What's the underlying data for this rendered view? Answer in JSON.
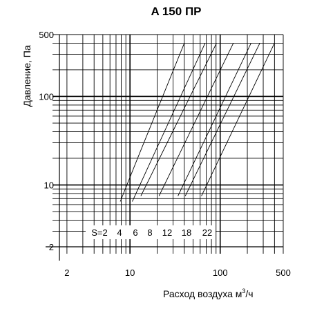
{
  "chart_data": {
    "type": "line",
    "title": "A 150 ПР",
    "xlabel_main": "Расход воздуха м",
    "xlabel_sup": "3",
    "xlabel_tail": "/ч",
    "ylabel": "Давление, Па",
    "x_scale": "log",
    "y_scale": "log",
    "xlim": [
      1.65,
      500
    ],
    "ylim": [
      2,
      500
    ],
    "x_ticks": [
      {
        "value": 2,
        "label": "2"
      },
      {
        "value": 10,
        "label": "10"
      },
      {
        "value": 100,
        "label": "100"
      },
      {
        "value": 500,
        "label": "500"
      }
    ],
    "y_ticks": [
      {
        "value": 2,
        "label": "2"
      },
      {
        "value": 10,
        "label": "10"
      },
      {
        "value": 100,
        "label": "100"
      },
      {
        "value": 500,
        "label": "500"
      }
    ],
    "grid": true,
    "legend": "none",
    "series_note": "S-labels along bottom row",
    "series": [
      {
        "label": "S=2",
        "points": [
          [
            7.8,
            6.5
          ],
          [
            12.6,
            22
          ],
          [
            40,
            400
          ]
        ]
      },
      {
        "label": "4",
        "points": [
          [
            10.6,
            6.5
          ],
          [
            68,
            400
          ]
        ]
      },
      {
        "label": "6",
        "points": [
          [
            13.2,
            7.5
          ],
          [
            91,
            400
          ]
        ]
      },
      {
        "label": "8",
        "points": [
          [
            21,
            7.5
          ],
          [
            140,
            400
          ]
        ]
      },
      {
        "label": "12",
        "points": [
          [
            34,
            7.5
          ],
          [
            220,
            400
          ]
        ]
      },
      {
        "label": "18",
        "points": [
          [
            41,
            7.5
          ],
          [
            275,
            400
          ]
        ]
      },
      {
        "label": "22",
        "points": [
          [
            62,
            7.5
          ],
          [
            400,
            400
          ]
        ]
      }
    ]
  }
}
